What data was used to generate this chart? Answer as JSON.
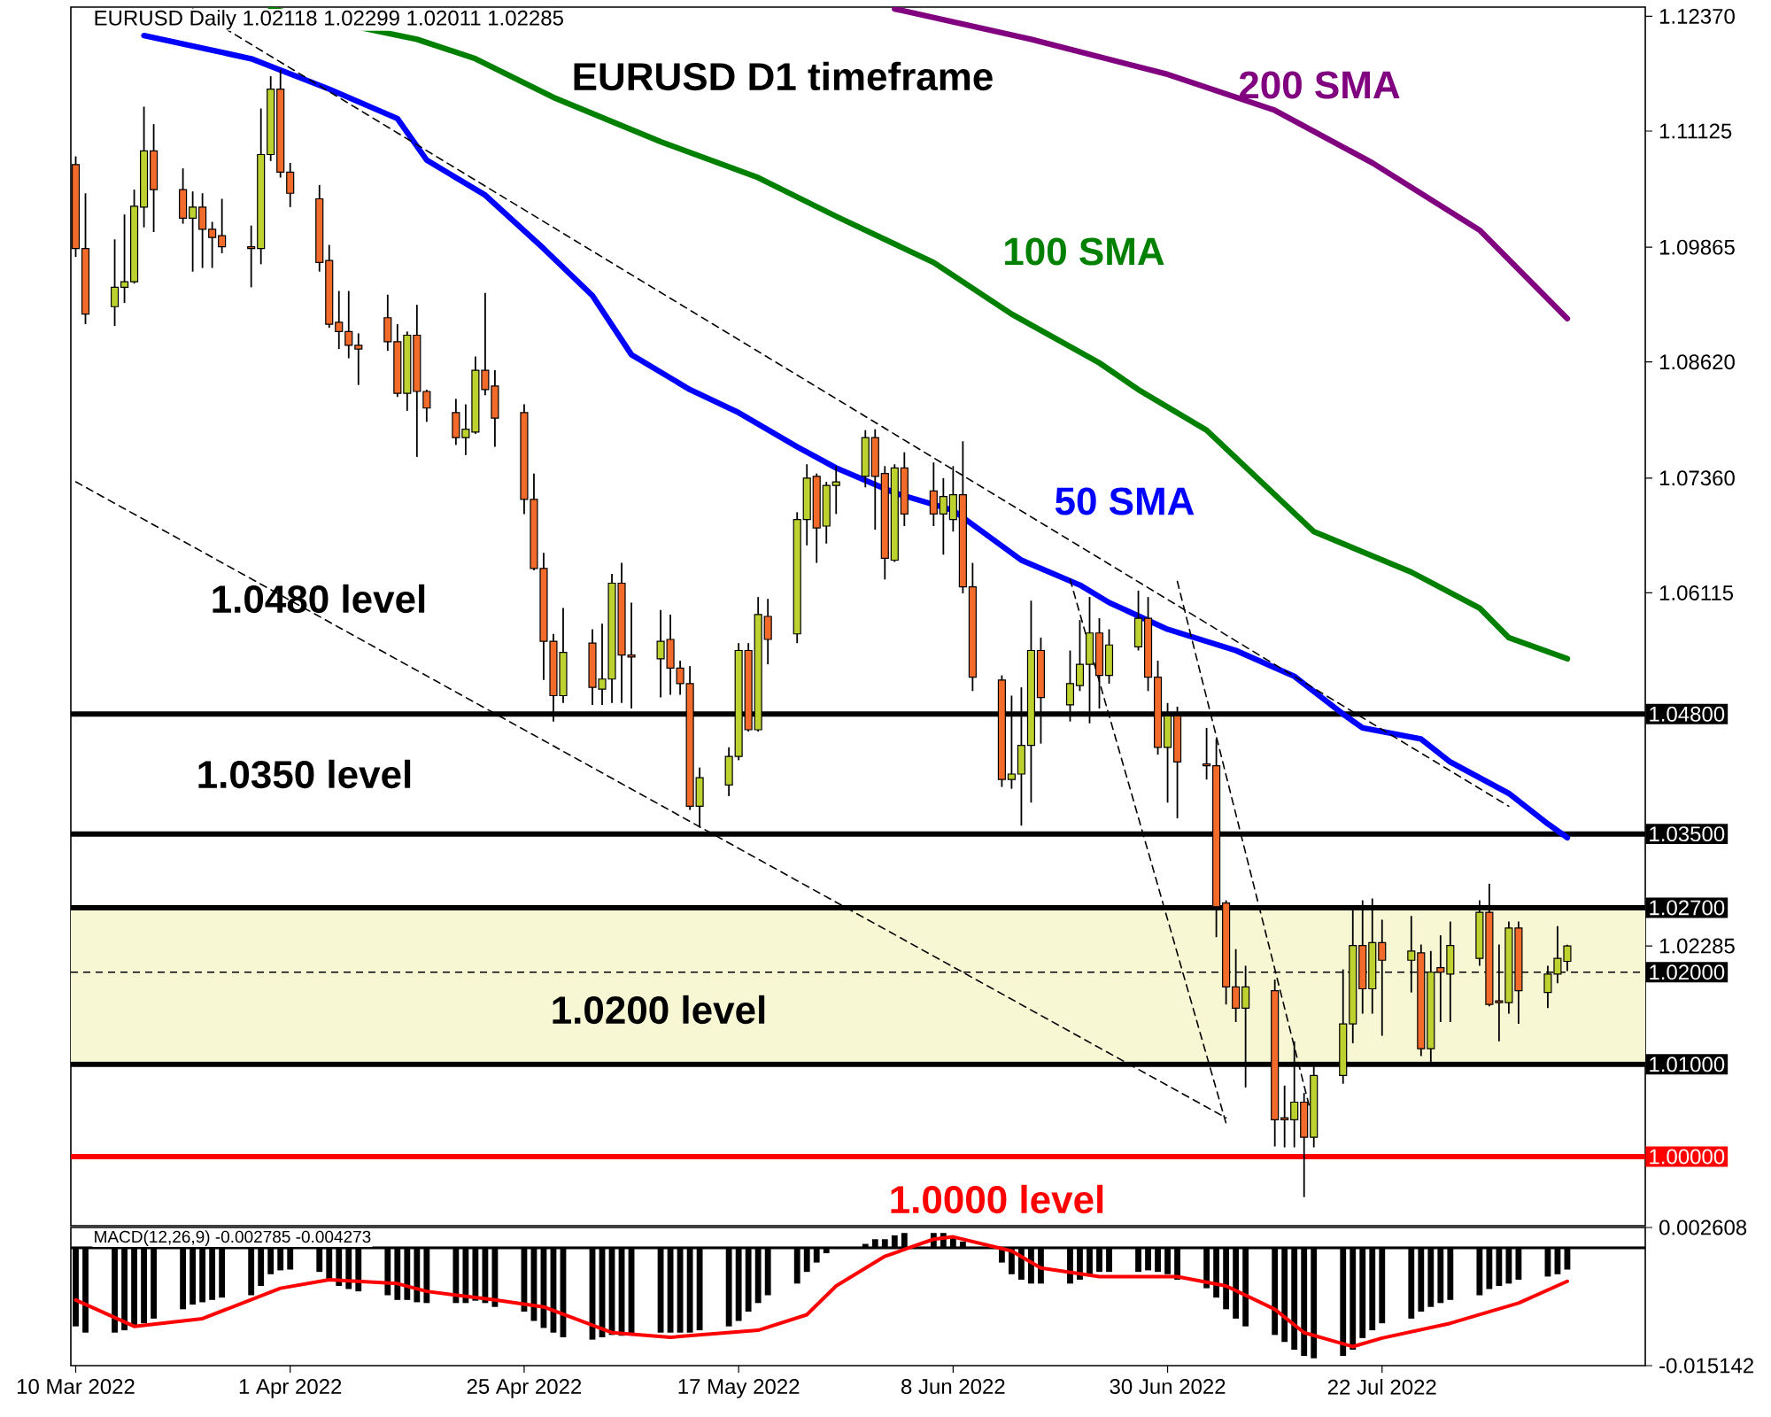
{
  "chart_data": [
    {
      "type": "candlestick",
      "title": "EURUSD Daily 1.02118 1.02299 1.02011 1.02285",
      "subtitle": "EURUSD D1 timeframe",
      "x": [
        "2022-03-10",
        "2022-03-11",
        "2022-03-14",
        "2022-03-15",
        "2022-03-16",
        "2022-03-17",
        "2022-03-18",
        "2022-03-21",
        "2022-03-22",
        "2022-03-23",
        "2022-03-24",
        "2022-03-25",
        "2022-03-28",
        "2022-03-29",
        "2022-03-30",
        "2022-03-31",
        "2022-04-01",
        "2022-04-04",
        "2022-04-05",
        "2022-04-06",
        "2022-04-07",
        "2022-04-08",
        "2022-04-11",
        "2022-04-12",
        "2022-04-13",
        "2022-04-14",
        "2022-04-15",
        "2022-04-18",
        "2022-04-19",
        "2022-04-20",
        "2022-04-21",
        "2022-04-22",
        "2022-04-25",
        "2022-04-26",
        "2022-04-27",
        "2022-04-28",
        "2022-04-29",
        "2022-05-02",
        "2022-05-03",
        "2022-05-04",
        "2022-05-05",
        "2022-05-06",
        "2022-05-09",
        "2022-05-10",
        "2022-05-11",
        "2022-05-12",
        "2022-05-13",
        "2022-05-16",
        "2022-05-17",
        "2022-05-18",
        "2022-05-19",
        "2022-05-20",
        "2022-05-23",
        "2022-05-24",
        "2022-05-25",
        "2022-05-26",
        "2022-05-27",
        "2022-05-30",
        "2022-05-31",
        "2022-06-01",
        "2022-06-02",
        "2022-06-03",
        "2022-06-06",
        "2022-06-07",
        "2022-06-08",
        "2022-06-09",
        "2022-06-10",
        "2022-06-13",
        "2022-06-14",
        "2022-06-15",
        "2022-06-16",
        "2022-06-17",
        "2022-06-20",
        "2022-06-21",
        "2022-06-22",
        "2022-06-23",
        "2022-06-24",
        "2022-06-27",
        "2022-06-28",
        "2022-06-29",
        "2022-06-30",
        "2022-07-01",
        "2022-07-04",
        "2022-07-05",
        "2022-07-06",
        "2022-07-07",
        "2022-07-08",
        "2022-07-11",
        "2022-07-12",
        "2022-07-13",
        "2022-07-14",
        "2022-07-15",
        "2022-07-18",
        "2022-07-19",
        "2022-07-20",
        "2022-07-21",
        "2022-07-22",
        "2022-07-25",
        "2022-07-26",
        "2022-07-27",
        "2022-07-28",
        "2022-07-29",
        "2022-08-01",
        "2022-08-02",
        "2022-08-03",
        "2022-08-04",
        "2022-08-05",
        "2022-08-08",
        "2022-08-09",
        "2022-08-10"
      ],
      "ohlc": [
        [
          1.1076,
          1.1085,
          1.0976,
          1.0985
        ],
        [
          1.0985,
          1.1045,
          1.0903,
          1.0914
        ],
        [
          1.0922,
          1.0995,
          1.0901,
          1.0943
        ],
        [
          1.0943,
          1.1022,
          1.0926,
          1.0949
        ],
        [
          1.0949,
          1.1049,
          1.0947,
          1.1031
        ],
        [
          1.103,
          1.1139,
          1.1008,
          1.1091
        ],
        [
          1.1091,
          1.112,
          1.1003,
          1.1049
        ],
        [
          1.1049,
          1.1072,
          1.1012,
          1.1018
        ],
        [
          1.1018,
          1.1047,
          1.096,
          1.103
        ],
        [
          1.103,
          1.1045,
          1.0964,
          1.1006
        ],
        [
          1.1006,
          1.1014,
          1.0964,
          1.0997
        ],
        [
          1.0999,
          1.1039,
          1.098,
          1.0987
        ],
        [
          1.0987,
          1.101,
          1.0943,
          1.0985
        ],
        [
          1.0985,
          1.1137,
          1.0968,
          1.1087
        ],
        [
          1.1087,
          1.1172,
          1.108,
          1.1158
        ],
        [
          1.1158,
          1.1179,
          1.1062,
          1.1068
        ],
        [
          1.1068,
          1.1078,
          1.103,
          1.1045
        ],
        [
          1.1039,
          1.1054,
          1.096,
          1.097
        ],
        [
          1.0972,
          1.0989,
          1.0899,
          1.0903
        ],
        [
          1.0905,
          1.0939,
          1.0876,
          1.0895
        ],
        [
          1.0895,
          1.0939,
          1.0866,
          1.088
        ],
        [
          1.088,
          1.0893,
          1.0837,
          1.0876
        ],
        [
          1.091,
          1.0935,
          1.0874,
          1.0884
        ],
        [
          1.0884,
          1.0903,
          1.0824,
          1.0828
        ],
        [
          1.0828,
          1.0895,
          1.0809,
          1.0891
        ],
        [
          1.0891,
          1.0924,
          1.0759,
          1.083
        ],
        [
          1.083,
          1.0832,
          1.0797,
          1.0812
        ],
        [
          1.0807,
          1.0822,
          1.0772,
          1.078
        ],
        [
          1.078,
          1.0816,
          1.0761,
          1.0789
        ],
        [
          1.0786,
          1.0868,
          1.0784,
          1.0853
        ],
        [
          1.0853,
          1.0937,
          1.0826,
          1.0832
        ],
        [
          1.0836,
          1.0853,
          1.077,
          1.0801
        ],
        [
          1.0807,
          1.0816,
          1.0697,
          1.0713
        ],
        [
          1.0713,
          1.0741,
          1.0636,
          1.0638
        ],
        [
          1.0638,
          1.0655,
          1.0517,
          1.0559
        ],
        [
          1.0559,
          1.0567,
          1.0472,
          1.05
        ],
        [
          1.05,
          1.0595,
          1.0492,
          1.0547
        ],
        [
          1.0557,
          1.0572,
          1.049,
          1.0509
        ],
        [
          1.0507,
          1.0578,
          1.049,
          1.0518
        ],
        [
          1.0518,
          1.0632,
          1.0492,
          1.0622
        ],
        [
          1.0622,
          1.0644,
          1.0492,
          1.0544
        ],
        [
          1.0544,
          1.0601,
          1.0486,
          1.0542
        ],
        [
          1.054,
          1.0593,
          1.0498,
          1.0559
        ],
        [
          1.0561,
          1.0588,
          1.0501,
          1.053
        ],
        [
          1.053,
          1.0538,
          1.0501,
          1.0513
        ],
        [
          1.0513,
          1.0532,
          1.0376,
          1.038
        ],
        [
          1.038,
          1.0422,
          1.0357,
          1.0411
        ],
        [
          1.0403,
          1.0444,
          1.0391,
          1.0434
        ],
        [
          1.0434,
          1.0557,
          1.043,
          1.0549
        ],
        [
          1.0549,
          1.0557,
          1.0461,
          1.0463
        ],
        [
          1.0463,
          1.0607,
          1.0461,
          1.0588
        ],
        [
          1.0586,
          1.0605,
          1.0534,
          1.0561
        ],
        [
          1.0567,
          1.0699,
          1.0557,
          1.0691
        ],
        [
          1.0691,
          1.0751,
          1.0663,
          1.0736
        ],
        [
          1.0738,
          1.0741,
          1.0644,
          1.0682
        ],
        [
          1.0684,
          1.0732,
          1.0665,
          1.0728
        ],
        [
          1.0728,
          1.0749,
          1.0697,
          1.0732
        ],
        [
          1.0738,
          1.0788,
          1.0726,
          1.078
        ],
        [
          1.078,
          1.0789,
          1.068,
          1.0738
        ],
        [
          1.0741,
          1.0749,
          1.0626,
          1.0649
        ],
        [
          1.0647,
          1.0751,
          1.0645,
          1.0747
        ],
        [
          1.0747,
          1.0764,
          1.0684,
          1.0697
        ],
        [
          1.0722,
          1.0753,
          1.0684,
          1.0697
        ],
        [
          1.0697,
          1.0736,
          1.0653,
          1.0716
        ],
        [
          1.0691,
          1.0749,
          1.0678,
          1.0718
        ],
        [
          1.0718,
          1.0776,
          1.0611,
          1.0618
        ],
        [
          1.0618,
          1.0644,
          1.0505,
          1.052
        ],
        [
          1.0517,
          1.0522,
          1.0401,
          1.0409
        ],
        [
          1.0409,
          1.05,
          1.0399,
          1.0415
        ],
        [
          1.0415,
          1.0509,
          1.0359,
          1.0446
        ],
        [
          1.0446,
          1.0603,
          1.0384,
          1.0549
        ],
        [
          1.0549,
          1.0563,
          1.0448,
          1.0498
        ],
        [
          1.049,
          1.0549,
          1.0472,
          1.0513
        ],
        [
          1.0511,
          1.0582,
          1.0505,
          1.0534
        ],
        [
          1.0534,
          1.0607,
          1.047,
          1.0568
        ],
        [
          1.0568,
          1.0584,
          1.0486,
          1.0522
        ],
        [
          1.0522,
          1.0572,
          1.0513,
          1.0555
        ],
        [
          1.0553,
          1.0614,
          1.0549,
          1.0584
        ],
        [
          1.0584,
          1.0607,
          1.0505,
          1.052
        ],
        [
          1.052,
          1.0538,
          1.0436,
          1.0444
        ],
        [
          1.0444,
          1.0492,
          1.0384,
          1.0478
        ],
        [
          1.0478,
          1.0488,
          1.0367,
          1.0428
        ],
        [
          1.0426,
          1.0465,
          1.0409,
          1.0424
        ],
        [
          1.0424,
          1.0453,
          1.0238,
          1.0271
        ],
        [
          1.0275,
          1.0278,
          1.0165,
          1.0184
        ],
        [
          1.0184,
          1.0225,
          1.0146,
          1.0161
        ],
        [
          1.0161,
          1.0207,
          1.0075,
          1.0184
        ],
        [
          1.018,
          1.0192,
          1.0011,
          1.004
        ],
        [
          1.0042,
          1.0077,
          1.001,
          1.004
        ],
        [
          1.004,
          1.0125,
          1.001,
          1.0059
        ],
        [
          1.0059,
          1.0069,
          0.9956,
          1.0021
        ],
        [
          1.0021,
          1.0098,
          1.001,
          1.0088
        ],
        [
          1.0088,
          1.0203,
          1.0079,
          1.0144
        ],
        [
          1.0144,
          1.0269,
          1.0123,
          1.0229
        ],
        [
          1.0229,
          1.0278,
          1.0155,
          1.0182
        ],
        [
          1.0182,
          1.028,
          1.0155,
          1.0232
        ],
        [
          1.0232,
          1.0257,
          1.0131,
          1.0213
        ],
        [
          1.0213,
          1.0261,
          1.0178,
          1.0223
        ],
        [
          1.0221,
          1.023,
          1.0109,
          1.0117
        ],
        [
          1.0117,
          1.0223,
          1.0098,
          1.02
        ],
        [
          1.0205,
          1.024,
          1.0146,
          1.02
        ],
        [
          1.0198,
          1.0255,
          1.0146,
          1.0229
        ],
        [
          1.0215,
          1.0278,
          1.0207,
          1.0265
        ],
        [
          1.0265,
          1.0296,
          1.0163,
          1.0165
        ],
        [
          1.0169,
          1.023,
          1.0125,
          1.0167
        ],
        [
          1.0167,
          1.0255,
          1.0155,
          1.0248
        ],
        [
          1.0248,
          1.0255,
          1.0144,
          1.018
        ],
        [
          1.0178,
          1.0207,
          1.0161,
          1.0198
        ],
        [
          1.0198,
          1.025,
          1.0188,
          1.0215
        ],
        [
          1.02118,
          1.02299,
          1.02011,
          1.02285
        ]
      ],
      "colors": [
        "#f36b2b",
        "#f36b2b",
        "#bdd12f",
        "#bdd12f",
        "#bdd12f",
        "#bdd12f",
        "#f36b2b",
        "#f36b2b",
        "#bdd12f",
        "#f36b2b",
        "#f36b2b",
        "#f36b2b",
        "#f36b2b",
        "#bdd12f",
        "#bdd12f",
        "#f36b2b",
        "#f36b2b",
        "#f36b2b",
        "#f36b2b",
        "#f36b2b",
        "#f36b2b",
        "#f36b2b",
        "#f36b2b",
        "#f36b2b",
        "#bdd12f",
        "#f36b2b",
        "#f36b2b",
        "#f36b2b",
        "#bdd12f",
        "#bdd12f",
        "#f36b2b",
        "#f36b2b",
        "#f36b2b",
        "#f36b2b",
        "#f36b2b",
        "#f36b2b",
        "#bdd12f",
        "#f36b2b",
        "#bdd12f",
        "#bdd12f",
        "#f36b2b",
        "#f36b2b",
        "#bdd12f",
        "#f36b2b",
        "#f36b2b",
        "#f36b2b",
        "#bdd12f",
        "#bdd12f",
        "#bdd12f",
        "#f36b2b",
        "#bdd12f",
        "#f36b2b",
        "#bdd12f",
        "#bdd12f",
        "#f36b2b",
        "#bdd12f",
        "#bdd12f",
        "#bdd12f",
        "#f36b2b",
        "#f36b2b",
        "#bdd12f",
        "#f36b2b",
        "#f36b2b",
        "#bdd12f",
        "#bdd12f",
        "#f36b2b",
        "#f36b2b",
        "#f36b2b",
        "#bdd12f",
        "#bdd12f",
        "#bdd12f",
        "#f36b2b",
        "#bdd12f",
        "#bdd12f",
        "#bdd12f",
        "#f36b2b",
        "#bdd12f",
        "#bdd12f",
        "#f36b2b",
        "#f36b2b",
        "#bdd12f",
        "#f36b2b",
        "#f36b2b",
        "#f36b2b",
        "#f36b2b",
        "#f36b2b",
        "#bdd12f",
        "#f36b2b",
        "#f36b2b",
        "#bdd12f",
        "#f36b2b",
        "#bdd12f",
        "#bdd12f",
        "#bdd12f",
        "#f36b2b",
        "#bdd12f",
        "#f36b2b",
        "#bdd12f",
        "#f36b2b",
        "#bdd12f",
        "#f36b2b",
        "#bdd12f",
        "#bdd12f",
        "#f36b2b",
        "#f36b2b",
        "#bdd12f",
        "#f36b2b",
        "#bdd12f",
        "#bdd12f",
        "#bdd12f"
      ],
      "xlim": [
        "2022-03-09T12:00",
        "2022-08-18"
      ],
      "tick_labels": "y",
      "ylim": [
        0.9925,
        1.1247
      ],
      "yticks": [
        {
          "value": 1.1237,
          "label": "1.12370"
        },
        {
          "value": 1.11125,
          "label": "1.11125"
        },
        {
          "value": 1.09865,
          "label": "1.09865"
        },
        {
          "value": 1.0862,
          "label": "1.08620"
        },
        {
          "value": 1.0736,
          "label": "1.07360"
        },
        {
          "value": 1.06115,
          "label": "1.06115"
        },
        {
          "value": 1.02285,
          "label": "1.02285"
        }
      ],
      "bands": [
        {
          "axis": "y",
          "from": 1.01,
          "to": 1.027,
          "color": "#f7f7d4"
        }
      ],
      "ref_lines": [
        {
          "axis": "y",
          "value": 1.048,
          "label": "1.04800",
          "color": "#000000"
        },
        {
          "axis": "y",
          "value": 1.035,
          "label": "1.03500",
          "color": "#000000"
        },
        {
          "axis": "y",
          "value": 1.027,
          "label": "1.02700",
          "color": "#000000"
        },
        {
          "axis": "y",
          "value": 1.02,
          "label": "1.02000",
          "color": "#000000",
          "line_style": "dashed"
        },
        {
          "axis": "y",
          "value": 1.01,
          "label": "1.01000",
          "color": "#000000"
        },
        {
          "axis": "y",
          "value": 1.0,
          "label": "1.00000",
          "color": "#ff0000"
        }
      ],
      "annotations": [
        "1.0480 level",
        "1.0350 level",
        "1.0200 level",
        "1.0000 level"
      ],
      "series": [
        {
          "type": "line",
          "name": "50 SMA",
          "color": "#0000ff",
          "x": [
            "2022-03-17",
            "2022-03-28",
            "2022-04-05",
            "2022-04-12",
            "2022-04-15",
            "2022-04-21",
            "2022-04-27",
            "2022-05-02",
            "2022-05-06",
            "2022-05-12",
            "2022-05-17",
            "2022-05-23",
            "2022-05-27",
            "2022-06-02",
            "2022-06-08",
            "2022-06-15",
            "2022-06-21",
            "2022-06-24",
            "2022-06-30",
            "2022-07-07",
            "2022-07-13",
            "2022-07-18",
            "2022-07-20",
            "2022-07-26",
            "2022-07-29",
            "2022-08-04",
            "2022-08-08",
            "2022-08-10"
          ],
          "values": [
            1.1216,
            1.1191,
            1.1158,
            1.1126,
            1.1081,
            1.1043,
            1.0985,
            1.0934,
            1.087,
            1.0832,
            1.0807,
            1.077,
            1.0747,
            1.072,
            1.0701,
            1.0647,
            1.062,
            1.0601,
            1.0572,
            1.0549,
            1.0521,
            1.048,
            1.0465,
            1.0453,
            1.0428,
            1.0394,
            1.0361,
            1.0346
          ]
        },
        {
          "type": "line",
          "name": "100 SMA",
          "color": "#008000",
          "x": [
            "2022-03-30",
            "2022-04-14",
            "2022-04-20",
            "2022-04-28",
            "2022-05-09",
            "2022-05-19",
            "2022-05-27",
            "2022-06-06",
            "2022-06-14",
            "2022-06-23",
            "2022-06-27",
            "2022-07-04",
            "2022-07-15",
            "2022-07-25",
            "2022-08-01",
            "2022-08-04",
            "2022-08-10"
          ],
          "values": [
            1.1245,
            1.1212,
            1.1191,
            1.1149,
            1.1101,
            1.1062,
            1.102,
            1.097,
            1.0914,
            1.0861,
            1.0832,
            1.0788,
            1.0678,
            1.0634,
            1.0595,
            1.0563,
            1.054
          ]
        },
        {
          "type": "line",
          "name": "200 SMA",
          "color": "#800080",
          "x": [
            "2022-06-02",
            "2022-06-16",
            "2022-06-30",
            "2022-07-11",
            "2022-07-21",
            "2022-08-01",
            "2022-08-10"
          ],
          "values": [
            1.1245,
            1.1212,
            1.1174,
            1.1135,
            1.1078,
            1.1005,
            1.0909
          ]
        },
        {
          "type": "line",
          "color": "#000000",
          "line_style": "dashed",
          "x": [
            "2022-03-22",
            "2022-08-04"
          ],
          "values": [
            1.1245,
            1.038
          ]
        },
        {
          "type": "line",
          "color": "#000000",
          "line_style": "dashed",
          "x": [
            "2022-03-10",
            "2022-07-06"
          ],
          "values": [
            1.0732,
            1.0042
          ]
        },
        {
          "type": "line",
          "color": "#000000",
          "line_style": "dashed",
          "x": [
            "2022-06-20",
            "2022-07-06"
          ],
          "values": [
            1.0626,
            1.0036
          ]
        },
        {
          "type": "line",
          "color": "#000000",
          "line_style": "dashed",
          "x": [
            "2022-07-01",
            "2022-07-14T12:00"
          ],
          "values": [
            1.0624,
            1.0056
          ]
        }
      ]
    },
    {
      "type": "bar",
      "title": "MACD(12,26,9) -0.002785 -0.004273",
      "xlim": [
        "2022-03-09T12:00",
        "2022-08-18"
      ],
      "xticks": [
        {
          "value": "2022-03-10",
          "label": "10 Mar 2022"
        },
        {
          "value": "2022-04-01",
          "label": "1 Apr 2022"
        },
        {
          "value": "2022-04-25",
          "label": "25 Apr 2022"
        },
        {
          "value": "2022-05-17",
          "label": "17 May 2022"
        },
        {
          "value": "2022-06-08",
          "label": "8 Jun 2022"
        },
        {
          "value": "2022-06-30",
          "label": "30 Jun 2022"
        },
        {
          "value": "2022-07-22",
          "label": "22 Jul 2022"
        }
      ],
      "ylim": [
        -0.015142,
        0.002608
      ],
      "yticks": [
        {
          "value": 0.002608,
          "label": "0.002608"
        },
        {
          "value": -0.015142,
          "label": "-0.015142"
        }
      ],
      "ref_lines": [
        {
          "axis": "y",
          "value": 0,
          "color": "#000000"
        }
      ],
      "series": [
        {
          "type": "bar",
          "color": "#000000",
          "x": [
            "2022-03-10",
            "2022-03-11",
            "2022-03-14",
            "2022-03-15",
            "2022-03-16",
            "2022-03-17",
            "2022-03-18",
            "2022-03-21",
            "2022-03-22",
            "2022-03-23",
            "2022-03-24",
            "2022-03-25",
            "2022-03-28",
            "2022-03-29",
            "2022-03-30",
            "2022-03-31",
            "2022-04-01",
            "2022-04-04",
            "2022-04-05",
            "2022-04-06",
            "2022-04-07",
            "2022-04-08",
            "2022-04-11",
            "2022-04-12",
            "2022-04-13",
            "2022-04-14",
            "2022-04-15",
            "2022-04-18",
            "2022-04-19",
            "2022-04-20",
            "2022-04-21",
            "2022-04-22",
            "2022-04-25",
            "2022-04-26",
            "2022-04-27",
            "2022-04-28",
            "2022-04-29",
            "2022-05-02",
            "2022-05-03",
            "2022-05-04",
            "2022-05-05",
            "2022-05-06",
            "2022-05-09",
            "2022-05-10",
            "2022-05-11",
            "2022-05-12",
            "2022-05-13",
            "2022-05-16",
            "2022-05-17",
            "2022-05-18",
            "2022-05-19",
            "2022-05-20",
            "2022-05-23",
            "2022-05-24",
            "2022-05-25",
            "2022-05-26",
            "2022-05-27",
            "2022-05-30",
            "2022-05-31",
            "2022-06-01",
            "2022-06-02",
            "2022-06-03",
            "2022-06-06",
            "2022-06-07",
            "2022-06-08",
            "2022-06-09",
            "2022-06-10",
            "2022-06-13",
            "2022-06-14",
            "2022-06-15",
            "2022-06-16",
            "2022-06-17",
            "2022-06-20",
            "2022-06-21",
            "2022-06-22",
            "2022-06-23",
            "2022-06-24",
            "2022-06-27",
            "2022-06-28",
            "2022-06-29",
            "2022-06-30",
            "2022-07-01",
            "2022-07-04",
            "2022-07-05",
            "2022-07-06",
            "2022-07-07",
            "2022-07-08",
            "2022-07-11",
            "2022-07-12",
            "2022-07-13",
            "2022-07-14",
            "2022-07-15",
            "2022-07-18",
            "2022-07-19",
            "2022-07-20",
            "2022-07-21",
            "2022-07-22",
            "2022-07-25",
            "2022-07-26",
            "2022-07-27",
            "2022-07-28",
            "2022-07-29",
            "2022-08-01",
            "2022-08-02",
            "2022-08-03",
            "2022-08-04",
            "2022-08-05",
            "2022-08-08",
            "2022-08-09",
            "2022-08-10"
          ],
          "values": [
            -0.0101,
            -0.0109,
            -0.0109,
            -0.0106,
            -0.0101,
            -0.0097,
            -0.0091,
            -0.0079,
            -0.0073,
            -0.007,
            -0.0067,
            -0.0064,
            -0.0061,
            -0.0049,
            -0.0034,
            -0.0029,
            -0.0028,
            -0.0031,
            -0.0041,
            -0.0049,
            -0.0053,
            -0.0056,
            -0.0061,
            -0.0067,
            -0.0067,
            -0.007,
            -0.0071,
            -0.0071,
            -0.0071,
            -0.0068,
            -0.0071,
            -0.0076,
            -0.0082,
            -0.0094,
            -0.0103,
            -0.0109,
            -0.0115,
            -0.0118,
            -0.0115,
            -0.0112,
            -0.0113,
            -0.0112,
            -0.0109,
            -0.0109,
            -0.0109,
            -0.0109,
            -0.0106,
            -0.0101,
            -0.0094,
            -0.0082,
            -0.0071,
            -0.0061,
            -0.0046,
            -0.0031,
            -0.0019,
            -0.0007,
            -0.0001,
            0.0005,
            0.0011,
            0.0011,
            0.0016,
            0.0019,
            0.0019,
            0.0019,
            0.0014,
            0.0008,
            -0.0001,
            -0.0019,
            -0.0034,
            -0.0041,
            -0.0046,
            -0.0046,
            -0.0046,
            -0.0041,
            -0.0034,
            -0.0031,
            -0.0031,
            -0.0031,
            -0.0029,
            -0.0031,
            -0.0034,
            -0.0041,
            -0.0052,
            -0.0064,
            -0.0079,
            -0.0091,
            -0.0101,
            -0.0112,
            -0.0121,
            -0.0131,
            -0.0139,
            -0.0142,
            -0.0139,
            -0.0131,
            -0.0116,
            -0.0106,
            -0.0097,
            -0.0091,
            -0.0082,
            -0.0076,
            -0.0071,
            -0.0067,
            -0.0061,
            -0.0053,
            -0.0049,
            -0.0046,
            -0.0041,
            -0.0037,
            -0.0034,
            -0.0028
          ]
        },
        {
          "type": "line",
          "color": "#ff0000",
          "x": [
            "2022-03-10",
            "2022-03-16",
            "2022-03-23",
            "2022-03-31",
            "2022-04-05",
            "2022-04-12",
            "2022-04-15",
            "2022-04-22",
            "2022-04-27",
            "2022-05-04",
            "2022-05-10",
            "2022-05-19",
            "2022-05-24",
            "2022-05-27",
            "2022-06-01",
            "2022-06-06",
            "2022-06-08",
            "2022-06-14",
            "2022-06-17",
            "2022-06-23",
            "2022-06-28",
            "2022-07-01",
            "2022-07-06",
            "2022-07-11",
            "2022-07-14",
            "2022-07-19",
            "2022-07-22",
            "2022-07-29",
            "2022-08-05",
            "2022-08-10"
          ],
          "values": [
            -0.0067,
            -0.0101,
            -0.0091,
            -0.0052,
            -0.0041,
            -0.0046,
            -0.0056,
            -0.0067,
            -0.0076,
            -0.0109,
            -0.0115,
            -0.0106,
            -0.0086,
            -0.0049,
            -0.0011,
            0.0011,
            0.0014,
            -0.0004,
            -0.0026,
            -0.0037,
            -0.0037,
            -0.0037,
            -0.0049,
            -0.0079,
            -0.0109,
            -0.0127,
            -0.0116,
            -0.0097,
            -0.0071,
            -0.0043
          ]
        }
      ]
    }
  ]
}
